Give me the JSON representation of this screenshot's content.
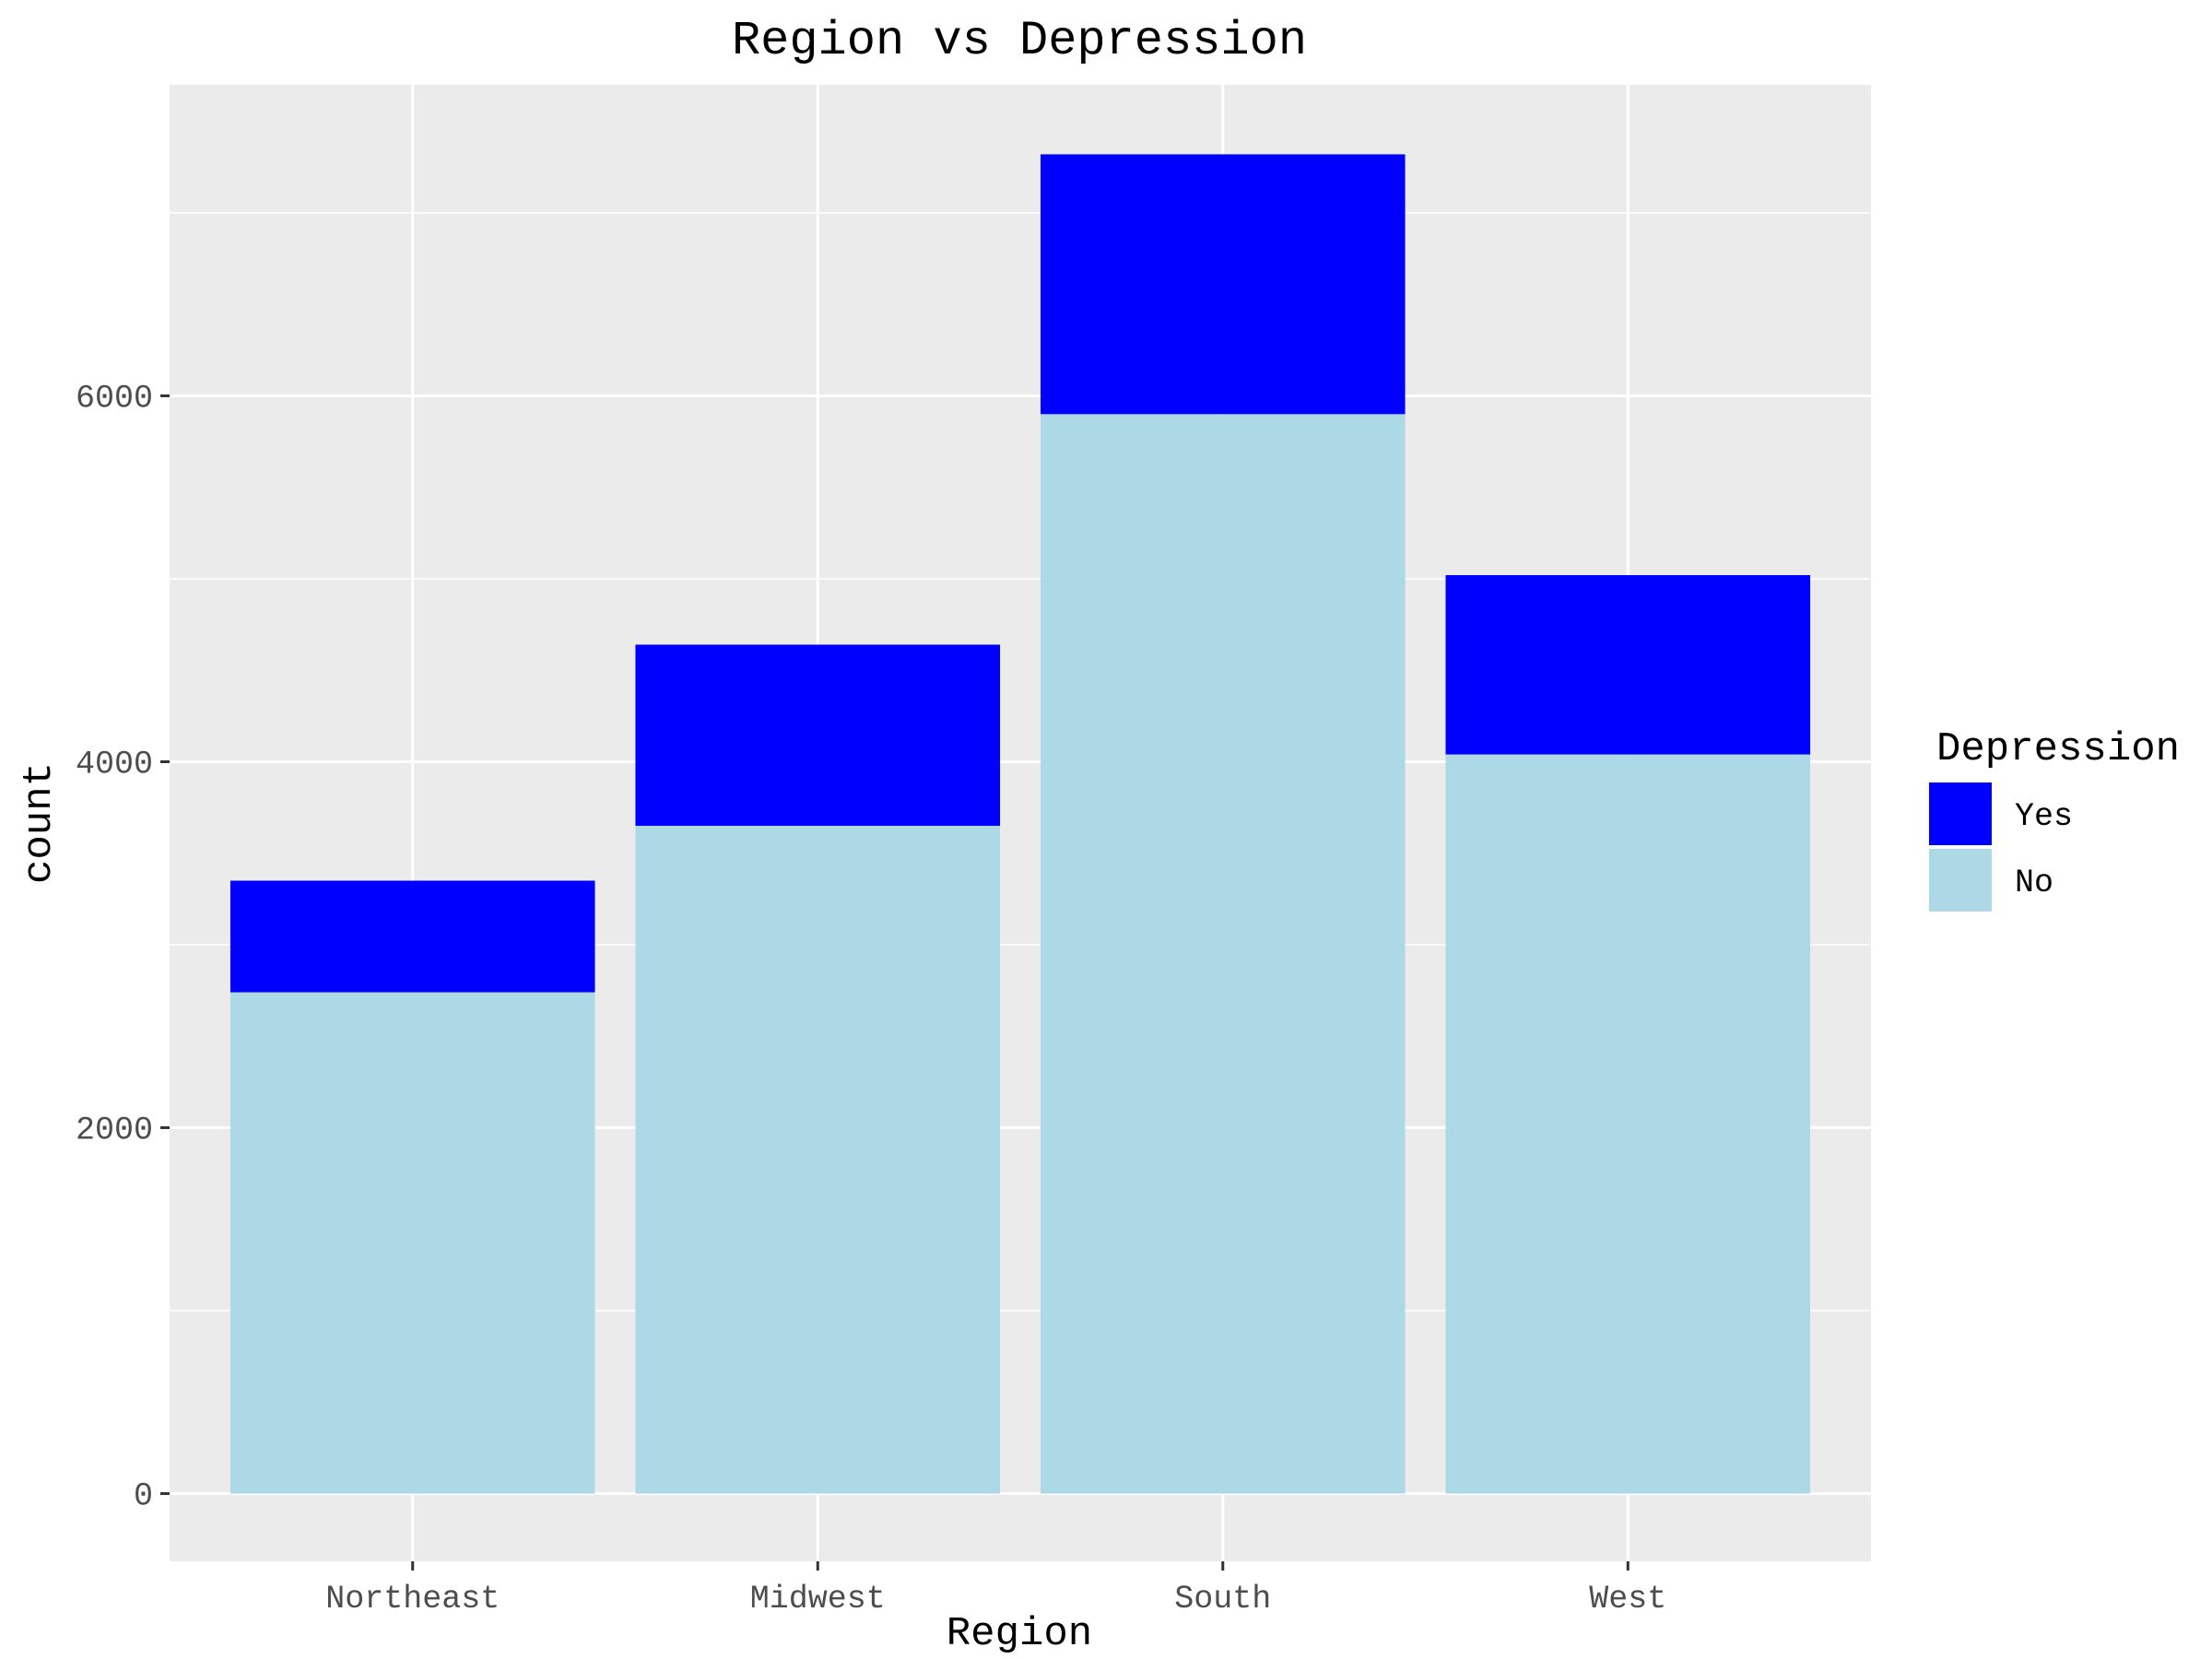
{
  "chart_data": {
    "type": "bar",
    "stacked": true,
    "title": "Region vs Depression",
    "xlabel": "Region",
    "ylabel": "count",
    "categories": [
      "Northeast",
      "Midwest",
      "South",
      "West"
    ],
    "series": [
      {
        "name": "No",
        "color": "#add8e6",
        "values": [
          2740,
          3650,
          5900,
          4040
        ]
      },
      {
        "name": "Yes",
        "color": "#0000ff",
        "values": [
          610,
          990,
          1420,
          980
        ]
      }
    ],
    "ylim": [
      -370,
      7700
    ],
    "yticks": [
      0,
      2000,
      4000,
      6000
    ],
    "ytick_labels": [
      "0",
      "2000",
      "4000",
      "6000"
    ],
    "grid": true,
    "legend": {
      "title": "Depression",
      "placement": "right",
      "items": [
        {
          "label": "Yes",
          "color": "#0000ff"
        },
        {
          "label": "No",
          "color": "#add8e6"
        }
      ]
    }
  }
}
